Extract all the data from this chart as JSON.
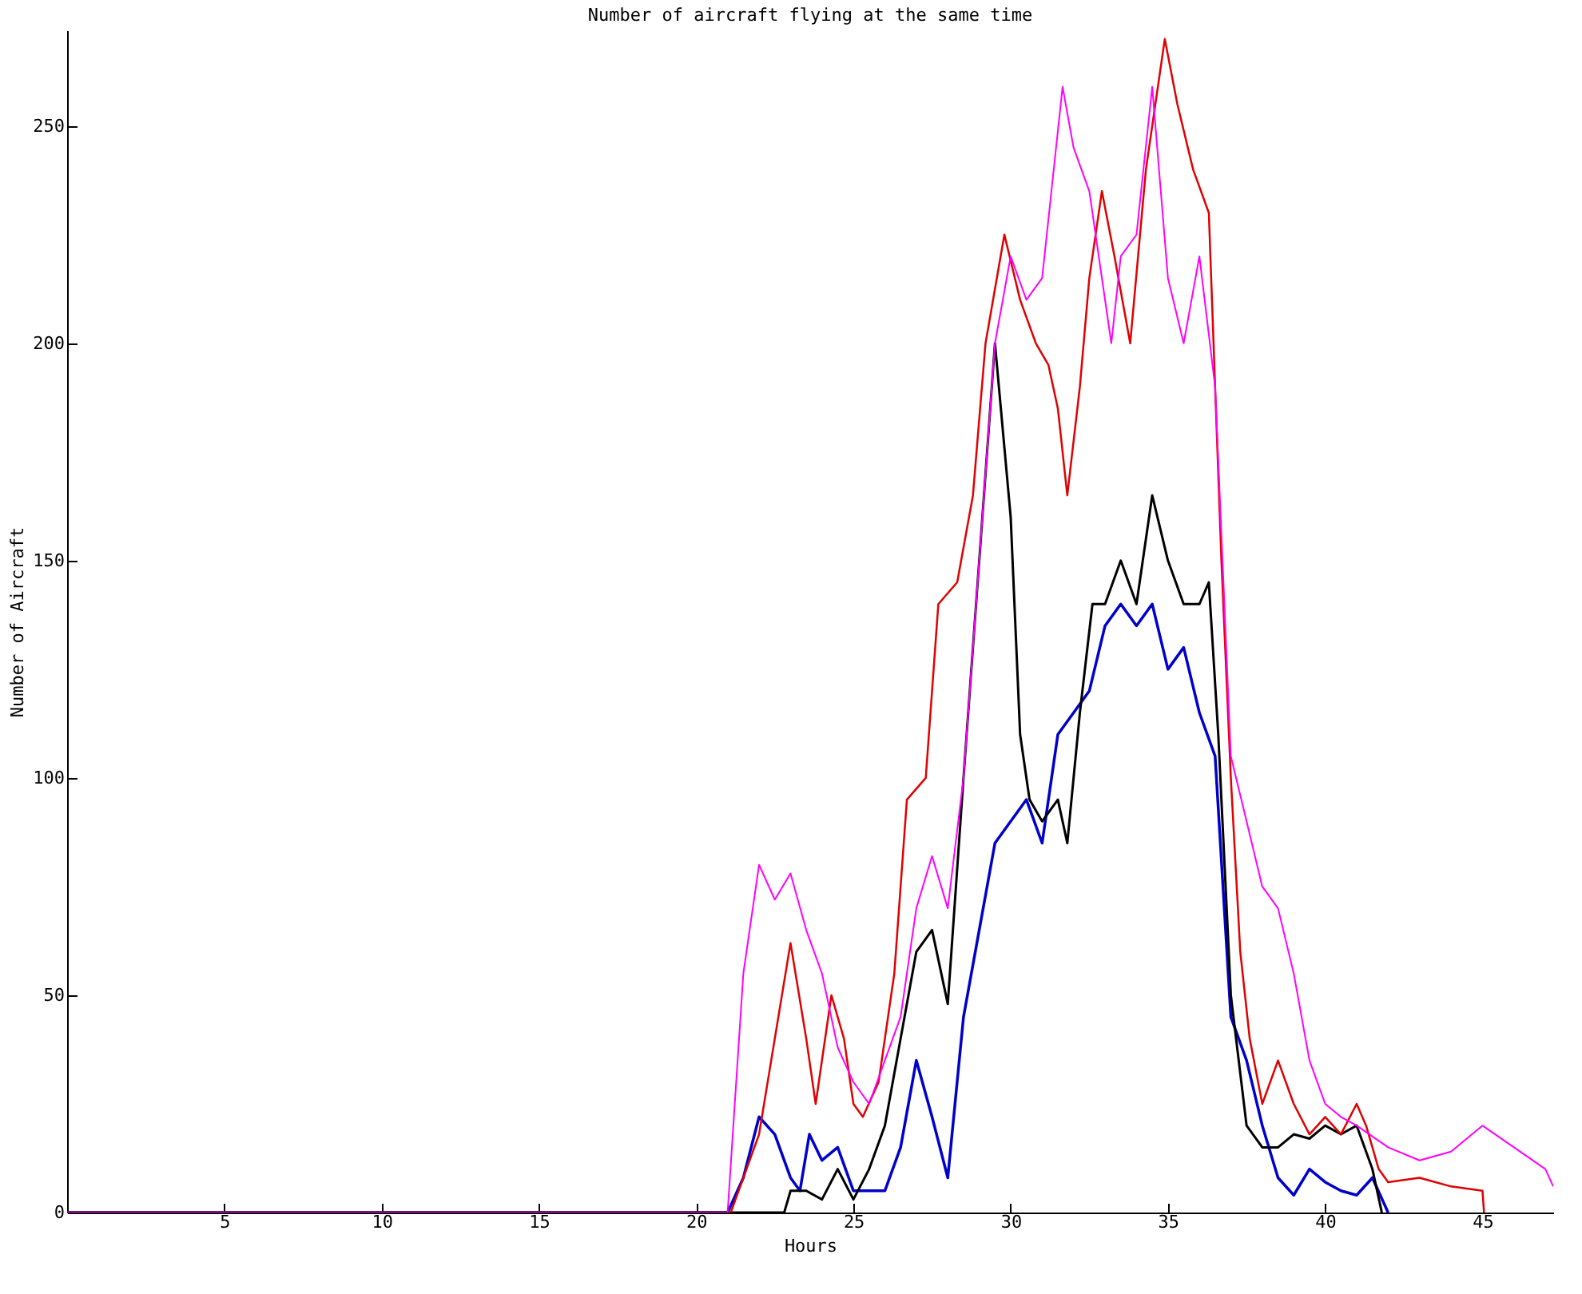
{
  "chart_data": {
    "type": "line",
    "title": "Number of aircraft flying at the same time",
    "xlabel": "Hours",
    "ylabel": "Number of Aircraft",
    "xlim": [
      0,
      47.25
    ],
    "ylim": [
      0,
      272
    ],
    "xticks": [
      5,
      10,
      15,
      20,
      25,
      30,
      35,
      40,
      45
    ],
    "yticks": [
      0,
      50,
      100,
      150,
      200,
      250
    ],
    "grid": false,
    "line_style": "solid",
    "series": [
      {
        "color": "#0000cc",
        "x": [
          0,
          21,
          21.5,
          22,
          22.5,
          23,
          23.3,
          23.6,
          24,
          24.5,
          25,
          25.5,
          26,
          26.5,
          27,
          27.5,
          28,
          28.5,
          29,
          29.5,
          30,
          30.5,
          31,
          31.5,
          32,
          32.5,
          33,
          33.5,
          34,
          34.5,
          35,
          35.5,
          36,
          36.5,
          37,
          37.5,
          38,
          38.5,
          39,
          39.5,
          40,
          40.5,
          41,
          41.5,
          42
        ],
        "values": [
          0,
          0,
          8,
          22,
          18,
          8,
          5,
          18,
          12,
          15,
          5,
          5,
          5,
          15,
          35,
          22,
          8,
          45,
          65,
          85,
          90,
          95,
          85,
          110,
          115,
          120,
          135,
          140,
          135,
          140,
          125,
          130,
          115,
          105,
          45,
          35,
          20,
          8,
          4,
          10,
          7,
          5,
          4,
          8,
          0
        ]
      },
      {
        "color": "#000000",
        "x": [
          0,
          22.8,
          23,
          23.5,
          24,
          24.5,
          25,
          25.5,
          26,
          26.5,
          27,
          27.5,
          28,
          28.5,
          29,
          29.5,
          30,
          30.3,
          30.6,
          31,
          31.5,
          31.8,
          32.2,
          32.6,
          33,
          33.5,
          34,
          34.5,
          35,
          35.5,
          36,
          36.3,
          36.6,
          37,
          37.5,
          38,
          38.5,
          39,
          39.5,
          40,
          40.5,
          41,
          41.5,
          41.8
        ],
        "values": [
          0,
          0,
          5,
          5,
          3,
          10,
          3,
          10,
          20,
          40,
          60,
          65,
          48,
          100,
          150,
          200,
          160,
          110,
          95,
          90,
          95,
          85,
          115,
          140,
          140,
          150,
          140,
          165,
          150,
          140,
          140,
          145,
          110,
          50,
          20,
          15,
          15,
          18,
          17,
          20,
          18,
          20,
          10,
          0
        ]
      },
      {
        "color": "#e00000",
        "x": [
          0,
          21.1,
          21.5,
          22,
          22.5,
          23,
          23.5,
          23.8,
          24.3,
          24.7,
          25,
          25.3,
          25.8,
          26.3,
          26.7,
          27.3,
          27.7,
          28.3,
          28.8,
          29.2,
          29.8,
          30.3,
          30.8,
          31.2,
          31.5,
          31.8,
          32.2,
          32.5,
          32.9,
          33.3,
          33.8,
          34.3,
          34.9,
          35.3,
          35.8,
          36.3,
          36.7,
          37,
          37.3,
          37.6,
          38,
          38.5,
          39,
          39.5,
          40,
          40.5,
          41,
          41.3,
          41.7,
          42,
          43,
          44,
          45,
          45.05
        ],
        "values": [
          0,
          0,
          8,
          18,
          40,
          62,
          40,
          25,
          50,
          40,
          25,
          22,
          30,
          55,
          95,
          100,
          140,
          145,
          165,
          200,
          225,
          210,
          200,
          195,
          185,
          165,
          190,
          215,
          235,
          220,
          200,
          240,
          270,
          255,
          240,
          230,
          150,
          100,
          60,
          40,
          25,
          35,
          25,
          18,
          22,
          18,
          25,
          20,
          10,
          7,
          8,
          6,
          5,
          0
        ]
      },
      {
        "color": "#ff00ff",
        "x": [
          0,
          21,
          21.5,
          22,
          22.5,
          23,
          23.5,
          24,
          24.5,
          25,
          25.5,
          26,
          26.5,
          27,
          27.5,
          28,
          28.5,
          29,
          29.5,
          30,
          30.5,
          31,
          31.65,
          32,
          32.5,
          33.2,
          33.5,
          34,
          34.5,
          35,
          35.5,
          36,
          36.5,
          37,
          37.5,
          38,
          38.5,
          39,
          39.5,
          40,
          40.5,
          41,
          42,
          43,
          44,
          45,
          46,
          47,
          47.25
        ],
        "values": [
          0,
          0,
          55,
          80,
          72,
          78,
          65,
          55,
          38,
          30,
          25,
          35,
          45,
          70,
          82,
          70,
          100,
          150,
          200,
          220,
          210,
          215,
          259,
          245,
          235,
          200,
          220,
          225,
          259,
          215,
          200,
          220,
          190,
          105,
          90,
          75,
          70,
          55,
          35,
          25,
          22,
          20,
          15,
          12,
          14,
          20,
          15,
          10,
          6
        ]
      }
    ]
  }
}
